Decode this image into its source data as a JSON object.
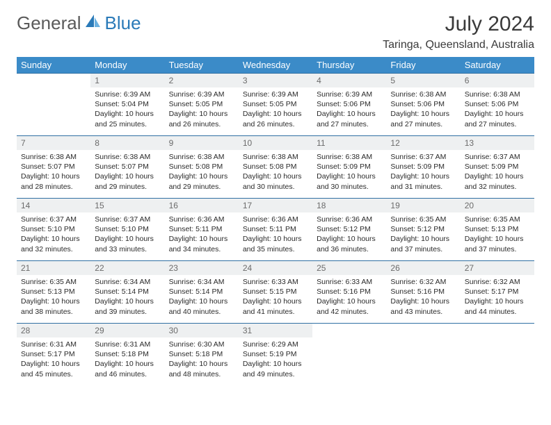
{
  "brand": {
    "general": "General",
    "blue": "Blue"
  },
  "title": "July 2024",
  "location": "Taringa, Queensland, Australia",
  "colors": {
    "header_bg": "#3b8bc8",
    "header_text": "#ffffff",
    "daynum_bg": "#eef0f1",
    "daynum_text": "#6b6b6b",
    "row_border": "#2f6fa3",
    "body_text": "#2a2a2a",
    "logo_gray": "#5a5a5a",
    "logo_blue": "#2a7ab8"
  },
  "weekdays": [
    "Sunday",
    "Monday",
    "Tuesday",
    "Wednesday",
    "Thursday",
    "Friday",
    "Saturday"
  ],
  "weeks": [
    [
      null,
      {
        "n": "1",
        "sr": "Sunrise: 6:39 AM",
        "ss": "Sunset: 5:04 PM",
        "d1": "Daylight: 10 hours",
        "d2": "and 25 minutes."
      },
      {
        "n": "2",
        "sr": "Sunrise: 6:39 AM",
        "ss": "Sunset: 5:05 PM",
        "d1": "Daylight: 10 hours",
        "d2": "and 26 minutes."
      },
      {
        "n": "3",
        "sr": "Sunrise: 6:39 AM",
        "ss": "Sunset: 5:05 PM",
        "d1": "Daylight: 10 hours",
        "d2": "and 26 minutes."
      },
      {
        "n": "4",
        "sr": "Sunrise: 6:39 AM",
        "ss": "Sunset: 5:06 PM",
        "d1": "Daylight: 10 hours",
        "d2": "and 27 minutes."
      },
      {
        "n": "5",
        "sr": "Sunrise: 6:38 AM",
        "ss": "Sunset: 5:06 PM",
        "d1": "Daylight: 10 hours",
        "d2": "and 27 minutes."
      },
      {
        "n": "6",
        "sr": "Sunrise: 6:38 AM",
        "ss": "Sunset: 5:06 PM",
        "d1": "Daylight: 10 hours",
        "d2": "and 27 minutes."
      }
    ],
    [
      {
        "n": "7",
        "sr": "Sunrise: 6:38 AM",
        "ss": "Sunset: 5:07 PM",
        "d1": "Daylight: 10 hours",
        "d2": "and 28 minutes."
      },
      {
        "n": "8",
        "sr": "Sunrise: 6:38 AM",
        "ss": "Sunset: 5:07 PM",
        "d1": "Daylight: 10 hours",
        "d2": "and 29 minutes."
      },
      {
        "n": "9",
        "sr": "Sunrise: 6:38 AM",
        "ss": "Sunset: 5:08 PM",
        "d1": "Daylight: 10 hours",
        "d2": "and 29 minutes."
      },
      {
        "n": "10",
        "sr": "Sunrise: 6:38 AM",
        "ss": "Sunset: 5:08 PM",
        "d1": "Daylight: 10 hours",
        "d2": "and 30 minutes."
      },
      {
        "n": "11",
        "sr": "Sunrise: 6:38 AM",
        "ss": "Sunset: 5:09 PM",
        "d1": "Daylight: 10 hours",
        "d2": "and 30 minutes."
      },
      {
        "n": "12",
        "sr": "Sunrise: 6:37 AM",
        "ss": "Sunset: 5:09 PM",
        "d1": "Daylight: 10 hours",
        "d2": "and 31 minutes."
      },
      {
        "n": "13",
        "sr": "Sunrise: 6:37 AM",
        "ss": "Sunset: 5:09 PM",
        "d1": "Daylight: 10 hours",
        "d2": "and 32 minutes."
      }
    ],
    [
      {
        "n": "14",
        "sr": "Sunrise: 6:37 AM",
        "ss": "Sunset: 5:10 PM",
        "d1": "Daylight: 10 hours",
        "d2": "and 32 minutes."
      },
      {
        "n": "15",
        "sr": "Sunrise: 6:37 AM",
        "ss": "Sunset: 5:10 PM",
        "d1": "Daylight: 10 hours",
        "d2": "and 33 minutes."
      },
      {
        "n": "16",
        "sr": "Sunrise: 6:36 AM",
        "ss": "Sunset: 5:11 PM",
        "d1": "Daylight: 10 hours",
        "d2": "and 34 minutes."
      },
      {
        "n": "17",
        "sr": "Sunrise: 6:36 AM",
        "ss": "Sunset: 5:11 PM",
        "d1": "Daylight: 10 hours",
        "d2": "and 35 minutes."
      },
      {
        "n": "18",
        "sr": "Sunrise: 6:36 AM",
        "ss": "Sunset: 5:12 PM",
        "d1": "Daylight: 10 hours",
        "d2": "and 36 minutes."
      },
      {
        "n": "19",
        "sr": "Sunrise: 6:35 AM",
        "ss": "Sunset: 5:12 PM",
        "d1": "Daylight: 10 hours",
        "d2": "and 37 minutes."
      },
      {
        "n": "20",
        "sr": "Sunrise: 6:35 AM",
        "ss": "Sunset: 5:13 PM",
        "d1": "Daylight: 10 hours",
        "d2": "and 37 minutes."
      }
    ],
    [
      {
        "n": "21",
        "sr": "Sunrise: 6:35 AM",
        "ss": "Sunset: 5:13 PM",
        "d1": "Daylight: 10 hours",
        "d2": "and 38 minutes."
      },
      {
        "n": "22",
        "sr": "Sunrise: 6:34 AM",
        "ss": "Sunset: 5:14 PM",
        "d1": "Daylight: 10 hours",
        "d2": "and 39 minutes."
      },
      {
        "n": "23",
        "sr": "Sunrise: 6:34 AM",
        "ss": "Sunset: 5:14 PM",
        "d1": "Daylight: 10 hours",
        "d2": "and 40 minutes."
      },
      {
        "n": "24",
        "sr": "Sunrise: 6:33 AM",
        "ss": "Sunset: 5:15 PM",
        "d1": "Daylight: 10 hours",
        "d2": "and 41 minutes."
      },
      {
        "n": "25",
        "sr": "Sunrise: 6:33 AM",
        "ss": "Sunset: 5:16 PM",
        "d1": "Daylight: 10 hours",
        "d2": "and 42 minutes."
      },
      {
        "n": "26",
        "sr": "Sunrise: 6:32 AM",
        "ss": "Sunset: 5:16 PM",
        "d1": "Daylight: 10 hours",
        "d2": "and 43 minutes."
      },
      {
        "n": "27",
        "sr": "Sunrise: 6:32 AM",
        "ss": "Sunset: 5:17 PM",
        "d1": "Daylight: 10 hours",
        "d2": "and 44 minutes."
      }
    ],
    [
      {
        "n": "28",
        "sr": "Sunrise: 6:31 AM",
        "ss": "Sunset: 5:17 PM",
        "d1": "Daylight: 10 hours",
        "d2": "and 45 minutes."
      },
      {
        "n": "29",
        "sr": "Sunrise: 6:31 AM",
        "ss": "Sunset: 5:18 PM",
        "d1": "Daylight: 10 hours",
        "d2": "and 46 minutes."
      },
      {
        "n": "30",
        "sr": "Sunrise: 6:30 AM",
        "ss": "Sunset: 5:18 PM",
        "d1": "Daylight: 10 hours",
        "d2": "and 48 minutes."
      },
      {
        "n": "31",
        "sr": "Sunrise: 6:29 AM",
        "ss": "Sunset: 5:19 PM",
        "d1": "Daylight: 10 hours",
        "d2": "and 49 minutes."
      },
      null,
      null,
      null
    ]
  ]
}
